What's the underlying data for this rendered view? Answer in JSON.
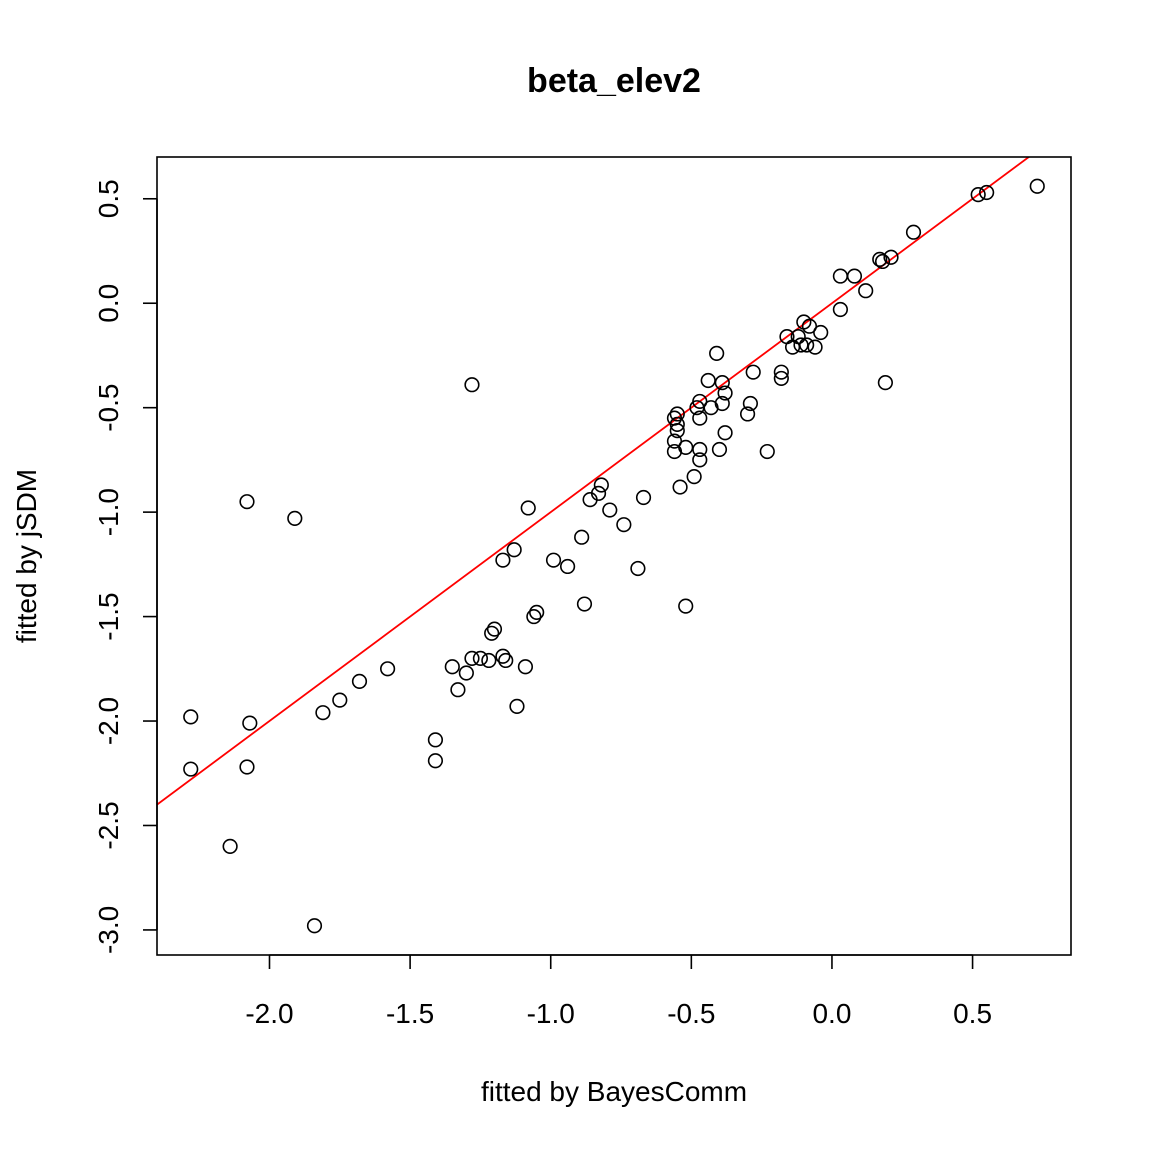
{
  "chart_data": {
    "type": "scatter",
    "title": "beta_elev2",
    "xlabel": "fitted by BayesComm",
    "ylabel": "fitted by jSDM",
    "xlim": [
      -2.4,
      0.85
    ],
    "ylim": [
      -3.12,
      0.7
    ],
    "x_ticks": [
      -2.0,
      -1.5,
      -1.0,
      -0.5,
      0.0,
      0.5
    ],
    "x_tick_labels": [
      "-2.0",
      "-1.5",
      "-1.0",
      "-0.5",
      "0.0",
      "0.5"
    ],
    "y_ticks": [
      -3.0,
      -2.5,
      -2.0,
      -1.5,
      -1.0,
      -0.5,
      0.0,
      0.5
    ],
    "y_tick_labels": [
      "-3.0",
      "-2.5",
      "-2.0",
      "-1.5",
      "-1.0",
      "-0.5",
      "0.0",
      "0.5"
    ],
    "reference_line": {
      "intercept": 0,
      "slope": 1,
      "color": "#ff0000"
    },
    "points": [
      [
        -2.28,
        -1.98
      ],
      [
        -2.28,
        -2.23
      ],
      [
        -2.14,
        -2.6
      ],
      [
        -2.08,
        -0.95
      ],
      [
        -2.08,
        -2.22
      ],
      [
        -2.07,
        -2.01
      ],
      [
        -1.91,
        -1.03
      ],
      [
        -1.84,
        -2.98
      ],
      [
        -1.81,
        -1.96
      ],
      [
        -1.75,
        -1.9
      ],
      [
        -1.68,
        -1.81
      ],
      [
        -1.58,
        -1.75
      ],
      [
        -1.41,
        -2.09
      ],
      [
        -1.41,
        -2.19
      ],
      [
        -1.35,
        -1.74
      ],
      [
        -1.33,
        -1.85
      ],
      [
        -1.3,
        -1.77
      ],
      [
        -1.28,
        -1.7
      ],
      [
        -1.28,
        -0.39
      ],
      [
        -1.25,
        -1.7
      ],
      [
        -1.22,
        -1.71
      ],
      [
        -1.21,
        -1.58
      ],
      [
        -1.2,
        -1.56
      ],
      [
        -1.17,
        -1.69
      ],
      [
        -1.16,
        -1.71
      ],
      [
        -1.17,
        -1.23
      ],
      [
        -1.13,
        -1.18
      ],
      [
        -1.12,
        -1.93
      ],
      [
        -1.09,
        -1.74
      ],
      [
        -1.08,
        -0.98
      ],
      [
        -1.06,
        -1.5
      ],
      [
        -1.05,
        -1.48
      ],
      [
        -0.99,
        -1.23
      ],
      [
        -0.94,
        -1.26
      ],
      [
        -0.89,
        -1.12
      ],
      [
        -0.88,
        -1.44
      ],
      [
        -0.86,
        -0.94
      ],
      [
        -0.83,
        -0.91
      ],
      [
        -0.82,
        -0.87
      ],
      [
        -0.79,
        -0.99
      ],
      [
        -0.74,
        -1.06
      ],
      [
        -0.69,
        -1.27
      ],
      [
        -0.67,
        -0.93
      ],
      [
        -0.56,
        -0.55
      ],
      [
        -0.56,
        -0.66
      ],
      [
        -0.56,
        -0.71
      ],
      [
        -0.55,
        -0.53
      ],
      [
        -0.55,
        -0.61
      ],
      [
        -0.55,
        -0.58
      ],
      [
        -0.54,
        -0.88
      ],
      [
        -0.52,
        -1.45
      ],
      [
        -0.52,
        -0.69
      ],
      [
        -0.49,
        -0.83
      ],
      [
        -0.48,
        -0.5
      ],
      [
        -0.47,
        -0.7
      ],
      [
        -0.47,
        -0.75
      ],
      [
        -0.47,
        -0.47
      ],
      [
        -0.47,
        -0.55
      ],
      [
        -0.44,
        -0.37
      ],
      [
        -0.43,
        -0.5
      ],
      [
        -0.41,
        -0.24
      ],
      [
        -0.4,
        -0.7
      ],
      [
        -0.39,
        -0.38
      ],
      [
        -0.39,
        -0.48
      ],
      [
        -0.38,
        -0.43
      ],
      [
        -0.38,
        -0.62
      ],
      [
        -0.3,
        -0.53
      ],
      [
        -0.29,
        -0.48
      ],
      [
        -0.28,
        -0.33
      ],
      [
        -0.23,
        -0.71
      ],
      [
        -0.18,
        -0.33
      ],
      [
        -0.18,
        -0.36
      ],
      [
        -0.16,
        -0.16
      ],
      [
        -0.14,
        -0.21
      ],
      [
        -0.12,
        -0.16
      ],
      [
        -0.11,
        -0.2
      ],
      [
        -0.1,
        -0.09
      ],
      [
        -0.09,
        -0.2
      ],
      [
        -0.08,
        -0.11
      ],
      [
        -0.06,
        -0.21
      ],
      [
        -0.04,
        -0.14
      ],
      [
        0.03,
        -0.03
      ],
      [
        0.03,
        0.13
      ],
      [
        0.08,
        0.13
      ],
      [
        0.12,
        0.06
      ],
      [
        0.17,
        0.21
      ],
      [
        0.18,
        0.2
      ],
      [
        0.19,
        -0.38
      ],
      [
        0.21,
        0.22
      ],
      [
        0.29,
        0.34
      ],
      [
        0.52,
        0.52
      ],
      [
        0.55,
        0.53
      ],
      [
        0.73,
        0.56
      ]
    ]
  }
}
